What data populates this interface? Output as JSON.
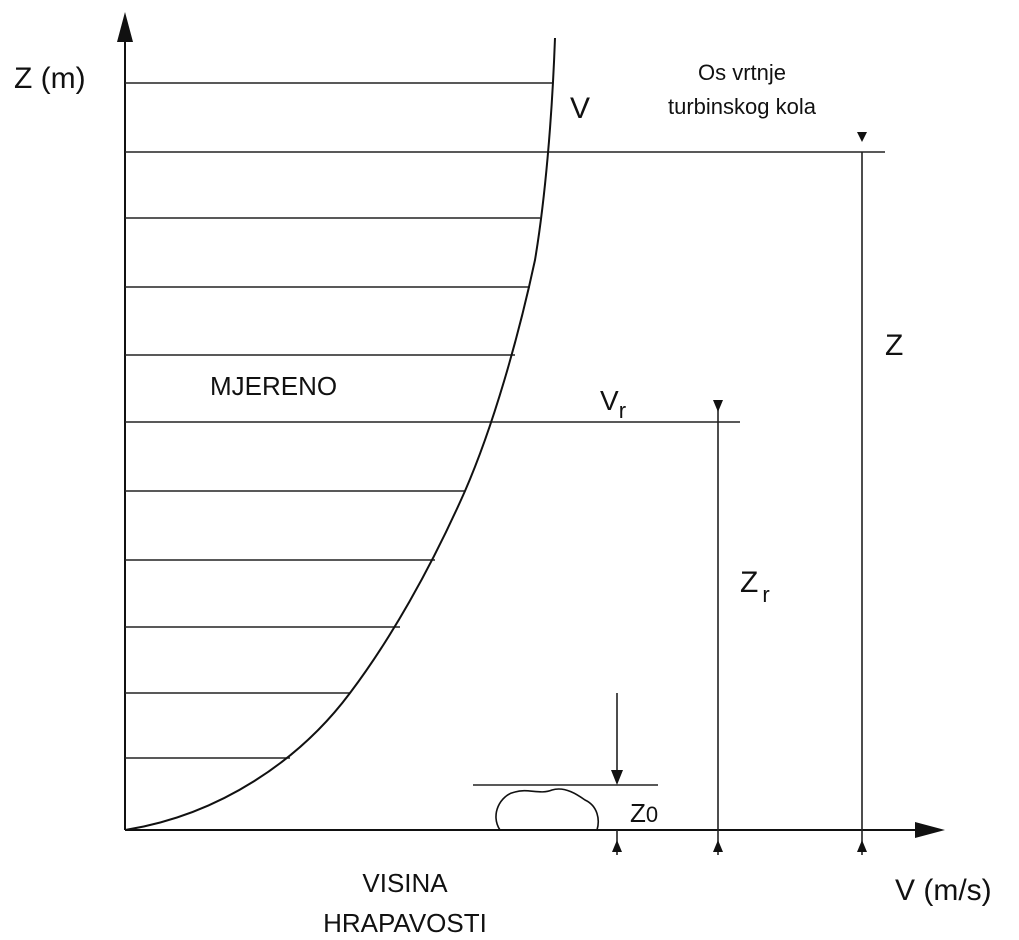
{
  "labels": {
    "y_axis": "Z (m)",
    "x_axis": "V (m/s)",
    "profile": "V",
    "hub_axis": [
      "Os vrtnje",
      "turbinskog kola"
    ],
    "hub_height": "Z",
    "measured": "MJERENO",
    "reference_velocity": {
      "main": "V",
      "sub": "r"
    },
    "reference_height": {
      "main": "Z",
      "sub": "r"
    },
    "roughness_length": {
      "main": "Z",
      "sub": "0"
    },
    "roughness": [
      "VISINA",
      "HRAPAVOSTI"
    ]
  }
}
